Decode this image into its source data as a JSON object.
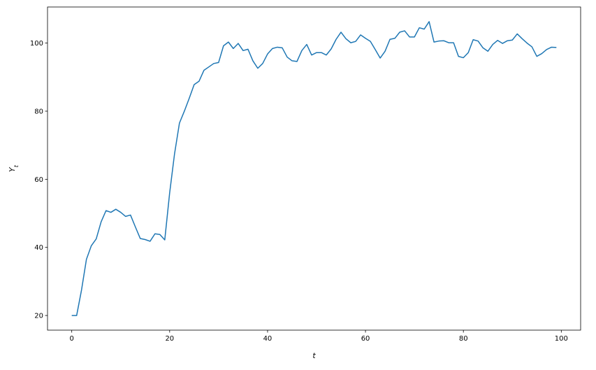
{
  "chart_data": {
    "type": "line",
    "title": "",
    "xlabel": "t",
    "ylabel": "Y_t",
    "xlim": [
      -4.95,
      103.95
    ],
    "ylim": [
      15.7,
      110.6
    ],
    "xticks": [
      0,
      20,
      40,
      60,
      80,
      100
    ],
    "yticks": [
      20,
      40,
      60,
      80,
      100
    ],
    "grid": false,
    "series": [
      {
        "color": "#1f77b4",
        "x": [
          0,
          1,
          2,
          3,
          4,
          5,
          6,
          7,
          8,
          9,
          10,
          11,
          12,
          13,
          14,
          15,
          16,
          17,
          18,
          19,
          20,
          21,
          22,
          23,
          24,
          25,
          26,
          27,
          28,
          29,
          30,
          31,
          32,
          33,
          34,
          35,
          36,
          37,
          38,
          39,
          40,
          41,
          42,
          43,
          44,
          45,
          46,
          47,
          48,
          49,
          50,
          51,
          52,
          53,
          54,
          55,
          56,
          57,
          58,
          59,
          60,
          61,
          62,
          63,
          64,
          65,
          66,
          67,
          68,
          69,
          70,
          71,
          72,
          73,
          74,
          75,
          76,
          77,
          78,
          79,
          80,
          81,
          82,
          83,
          84,
          85,
          86,
          87,
          88,
          89,
          90,
          91,
          92,
          93,
          94,
          95,
          96,
          97,
          98,
          99
        ],
        "values": [
          20,
          20,
          27.5,
          36.5,
          40.5,
          42.5,
          47.5,
          50.8,
          50.3,
          51.2,
          50.3,
          49.1,
          49.5,
          46,
          42.6,
          42.3,
          41.8,
          44,
          43.8,
          42.2,
          56,
          67.5,
          76.5,
          80,
          83.8,
          87.8,
          88.8,
          92,
          93,
          94,
          94.3,
          99.2,
          100.3,
          98.4,
          99.9,
          97.8,
          98.2,
          94.8,
          92.6,
          94,
          96.8,
          98.4,
          98.8,
          98.6,
          95.9,
          94.8,
          94.6,
          97.8,
          99.6,
          96.5,
          97.2,
          97.2,
          96.5,
          98.3,
          101.1,
          103.2,
          101.3,
          100.1,
          100.5,
          102.4,
          101.4,
          100.5,
          98.1,
          95.6,
          97.6,
          101.1,
          101.4,
          103.2,
          103.6,
          101.8,
          101.8,
          104.5,
          104.1,
          106.3,
          100.3,
          100.6,
          100.7,
          100.1,
          100.1,
          96.1,
          95.7,
          97.2,
          101,
          100.6,
          98.6,
          97.6,
          99.6,
          100.8,
          99.9,
          100.7,
          100.9,
          102.7,
          101.3,
          100,
          98.9,
          96.1,
          96.9,
          98.1,
          98.8,
          98.7
        ]
      }
    ]
  }
}
